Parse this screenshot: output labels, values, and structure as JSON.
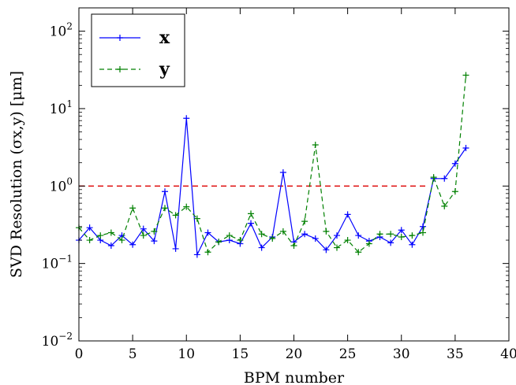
{
  "chart_data": {
    "type": "line",
    "xlabel": "BPM number",
    "ylabel": "SVD Resolution (σx,y) [μm]",
    "xlim": [
      0,
      40
    ],
    "ylim": [
      0.01,
      200
    ],
    "yscale": "log",
    "xticks": [
      "0",
      "5",
      "10",
      "15",
      "20",
      "25",
      "30",
      "35",
      "40"
    ],
    "yticks": [
      {
        "value": 0.01,
        "base": "10",
        "exp": "−2"
      },
      {
        "value": 0.1,
        "base": "10",
        "exp": "−1"
      },
      {
        "value": 1,
        "base": "10",
        "exp": "0"
      },
      {
        "value": 10,
        "base": "10",
        "exp": "1"
      },
      {
        "value": 100,
        "base": "10",
        "exp": "2"
      }
    ],
    "legend": {
      "position": "top-left"
    },
    "threshold": {
      "y": 1.0,
      "color": "#dd0000",
      "style": "dashed"
    },
    "series": [
      {
        "name": "x",
        "color": "#0000ff",
        "style": "solid",
        "x": [
          0,
          1,
          2,
          3,
          4,
          5,
          6,
          7,
          8,
          9,
          10,
          11,
          12,
          13,
          14,
          15,
          16,
          17,
          18,
          19,
          20,
          21,
          22,
          23,
          24,
          25,
          26,
          27,
          28,
          29,
          30,
          31,
          32,
          33,
          34,
          35,
          36
        ],
        "values": [
          0.2,
          0.29,
          0.2,
          0.17,
          0.23,
          0.175,
          0.28,
          0.195,
          0.85,
          0.155,
          7.5,
          0.13,
          0.25,
          0.19,
          0.2,
          0.18,
          0.33,
          0.16,
          0.22,
          1.5,
          0.19,
          0.24,
          0.21,
          0.15,
          0.23,
          0.43,
          0.23,
          0.195,
          0.22,
          0.185,
          0.27,
          0.175,
          0.3,
          1.25,
          1.25,
          1.95,
          3.1
        ]
      },
      {
        "name": "y",
        "color": "#008000",
        "style": "dashed",
        "x": [
          0,
          1,
          2,
          3,
          4,
          5,
          6,
          7,
          8,
          9,
          10,
          11,
          12,
          13,
          14,
          15,
          16,
          17,
          18,
          19,
          20,
          21,
          22,
          23,
          24,
          25,
          26,
          27,
          28,
          29,
          30,
          31,
          32,
          33,
          34,
          35,
          36
        ],
        "values": [
          0.29,
          0.2,
          0.23,
          0.25,
          0.2,
          0.52,
          0.23,
          0.26,
          0.52,
          0.42,
          0.54,
          0.38,
          0.14,
          0.19,
          0.23,
          0.2,
          0.44,
          0.24,
          0.21,
          0.26,
          0.17,
          0.35,
          3.4,
          0.26,
          0.16,
          0.2,
          0.14,
          0.18,
          0.24,
          0.24,
          0.22,
          0.23,
          0.25,
          1.3,
          0.55,
          0.85,
          27.0
        ]
      }
    ]
  }
}
